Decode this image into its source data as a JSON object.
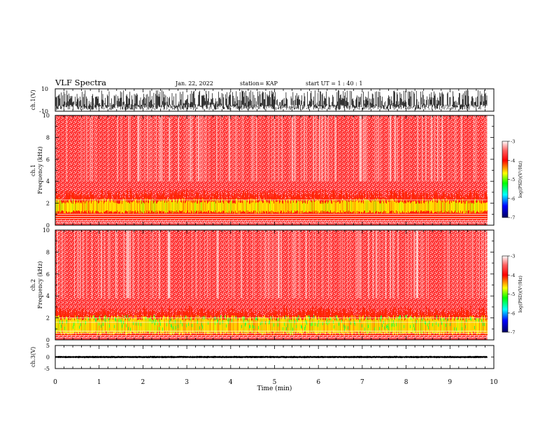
{
  "header": {
    "title": "VLF Spectra",
    "date": "Jan. 22, 2022",
    "station": "station= KAP",
    "start_ut": "start  UT =   1 : 40 : 1"
  },
  "colors": {
    "colorbar": [
      "#ffffff",
      "#ff0000",
      "#ffff00",
      "#00ff00",
      "#00ffff",
      "#0000ff",
      "#000080"
    ],
    "waveform": "#000000",
    "spectrogram_base": "#ff2a2a",
    "spectrogram_band": "#ffff00"
  },
  "chart_data": [
    {
      "type": "line",
      "id": "ch1",
      "ylabel": "ch.1(V)",
      "yticks": [
        "10",
        "-10"
      ],
      "ylim": [
        -10,
        10
      ],
      "xlim": [
        0,
        10
      ],
      "trace_range": [
        -9,
        9
      ],
      "data_end": 9.85
    },
    {
      "type": "heatmap",
      "id": "spec1",
      "ylabel_top": "ch.1",
      "ylabel": "Frequency (kHz)",
      "yticks": [
        "0",
        "2",
        "4",
        "6",
        "8",
        "10"
      ],
      "ylim": [
        0,
        10
      ],
      "xlim": [
        0,
        10
      ],
      "data_end": 9.85,
      "colorbar": {
        "ticks": [
          "-3",
          "-4",
          "-5",
          "-6",
          "-7"
        ],
        "label": "log(PSD)(V²/Hz)",
        "range": [
          -7,
          -3
        ]
      },
      "band_kHz": [
        0.5,
        3.0
      ],
      "strong_band_kHz": [
        1.2,
        2.2
      ],
      "lines_kHz": [
        0.2,
        0.4,
        0.6,
        0.8,
        1.0,
        2.3
      ]
    },
    {
      "type": "heatmap",
      "id": "spec2",
      "ylabel_top": "ch.2",
      "ylabel": "Frequency (kHz)",
      "yticks": [
        "0",
        "2",
        "4",
        "6",
        "8",
        "10"
      ],
      "ylim": [
        0,
        10
      ],
      "xlim": [
        0,
        10
      ],
      "data_end": 9.85,
      "colorbar": {
        "ticks": [
          "-3",
          "-4",
          "-5",
          "-6",
          "-7"
        ],
        "label": "log(PSD)(V²/Hz)",
        "range": [
          -7,
          -3
        ]
      },
      "band_kHz": [
        0.4,
        2.8
      ],
      "strong_band_kHz": [
        0.6,
        2.0
      ],
      "lines_kHz": [
        0.2,
        0.4,
        0.6,
        0.8,
        1.6,
        2.0
      ]
    },
    {
      "type": "line",
      "id": "ch3",
      "ylabel": "ch.3(V)",
      "yticks": [
        "5",
        "0",
        "-5"
      ],
      "ylim": [
        -5,
        5
      ],
      "xlim": [
        0,
        10
      ],
      "trace_range": [
        -0.5,
        0.5
      ],
      "data_end": 9.85,
      "xlabel": "Time (min)",
      "xticks": [
        "0",
        "1",
        "2",
        "3",
        "4",
        "5",
        "6",
        "7",
        "8",
        "9",
        "10"
      ]
    }
  ]
}
